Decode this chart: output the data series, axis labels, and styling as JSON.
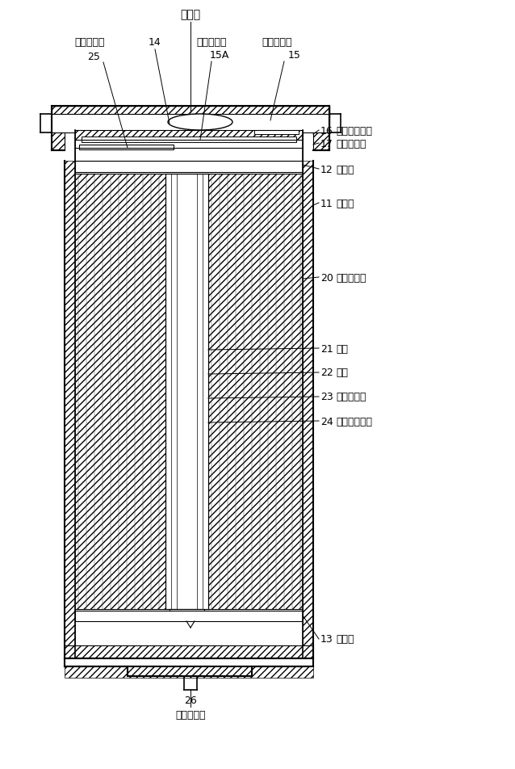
{
  "bg_color": "#ffffff",
  "line_color": "#000000",
  "fig_width": 6.38,
  "fig_height": 9.53,
  "labels": {
    "denchi_futa": "電池蓋",
    "seikyo_lead": "正極リード",
    "num_14": "14",
    "disk_ban": "ディスク板",
    "anzen_ben": "安全弁機構",
    "num_25": "25",
    "num_15A": "15A",
    "num_15": "15",
    "num_16": "16",
    "label_16": "熱感抵抗素子",
    "num_17": "17",
    "label_17": "ガスケット",
    "num_12": "12",
    "label_12": "絶縁板",
    "num_11": "11",
    "label_11": "電池缶",
    "num_20": "20",
    "label_20": "巻回電極体",
    "num_21": "21",
    "label_21": "正極",
    "num_22": "22",
    "label_22": "負極",
    "num_23": "23",
    "label_23": "セパレータ",
    "num_24": "24",
    "label_24": "センターピン",
    "num_13": "13",
    "label_13": "絶縁板",
    "num_26": "26",
    "label_26": "負極リード"
  }
}
